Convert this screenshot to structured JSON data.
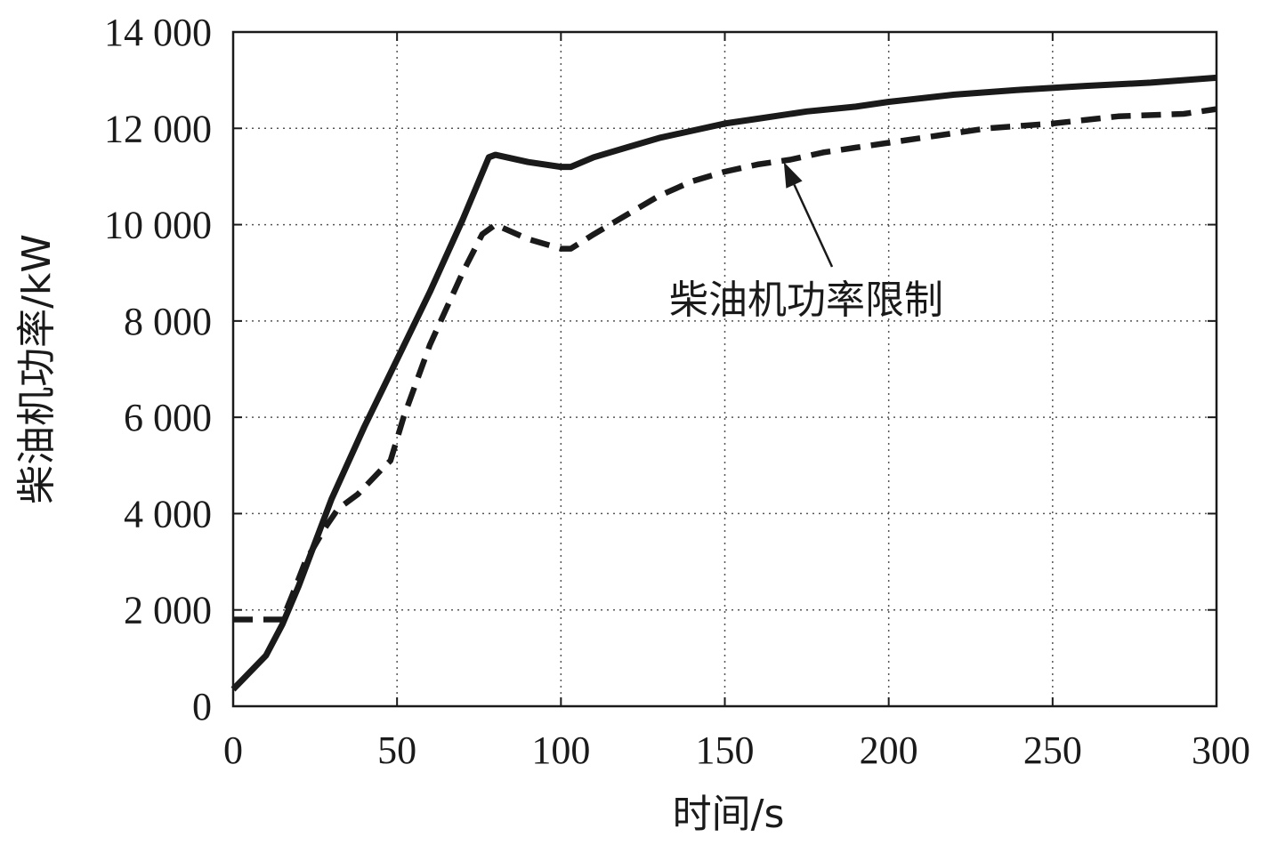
{
  "chart_data": {
    "type": "line",
    "title": "",
    "xlabel": "时间/s",
    "ylabel": "柴油机功率/kW",
    "xlim": [
      0,
      300
    ],
    "ylim": [
      0,
      14000
    ],
    "xticks": [
      0,
      50,
      100,
      150,
      200,
      250,
      300
    ],
    "xtick_labels": [
      "0",
      "50",
      "100",
      "150",
      "200",
      "250",
      "300"
    ],
    "yticks": [
      0,
      2000,
      4000,
      6000,
      8000,
      10000,
      12000,
      14000
    ],
    "ytick_labels": [
      "0",
      "2 000",
      "4 000",
      "6 000",
      "8 000",
      "10 000",
      "12 000",
      "14 000"
    ],
    "grid": true,
    "series": [
      {
        "style": "solid",
        "color": "#1a1a1a",
        "points": [
          [
            0,
            350
          ],
          [
            5,
            700
          ],
          [
            10,
            1050
          ],
          [
            15,
            1700
          ],
          [
            20,
            2500
          ],
          [
            25,
            3400
          ],
          [
            30,
            4300
          ],
          [
            40,
            5800
          ],
          [
            50,
            7200
          ],
          [
            60,
            8600
          ],
          [
            70,
            10100
          ],
          [
            78,
            11400
          ],
          [
            80,
            11450
          ],
          [
            90,
            11300
          ],
          [
            100,
            11200
          ],
          [
            103,
            11200
          ],
          [
            110,
            11400
          ],
          [
            120,
            11600
          ],
          [
            130,
            11800
          ],
          [
            140,
            11950
          ],
          [
            150,
            12100
          ],
          [
            160,
            12200
          ],
          [
            175,
            12350
          ],
          [
            190,
            12450
          ],
          [
            200,
            12550
          ],
          [
            220,
            12700
          ],
          [
            240,
            12800
          ],
          [
            260,
            12880
          ],
          [
            280,
            12950
          ],
          [
            300,
            13050
          ]
        ]
      },
      {
        "style": "dashed",
        "color": "#1a1a1a",
        "points": [
          [
            0,
            1800
          ],
          [
            15,
            1800
          ],
          [
            18,
            2300
          ],
          [
            22,
            3000
          ],
          [
            28,
            3700
          ],
          [
            32,
            4100
          ],
          [
            38,
            4400
          ],
          [
            45,
            4900
          ],
          [
            48,
            5100
          ],
          [
            52,
            6000
          ],
          [
            60,
            7500
          ],
          [
            70,
            9000
          ],
          [
            76,
            9800
          ],
          [
            80,
            10000
          ],
          [
            90,
            9700
          ],
          [
            100,
            9500
          ],
          [
            103,
            9500
          ],
          [
            110,
            9800
          ],
          [
            120,
            10200
          ],
          [
            130,
            10600
          ],
          [
            140,
            10900
          ],
          [
            150,
            11100
          ],
          [
            160,
            11250
          ],
          [
            170,
            11350
          ],
          [
            180,
            11500
          ],
          [
            190,
            11600
          ],
          [
            200,
            11700
          ],
          [
            215,
            11850
          ],
          [
            230,
            12000
          ],
          [
            250,
            12100
          ],
          [
            270,
            12250
          ],
          [
            290,
            12300
          ],
          [
            300,
            12400
          ]
        ]
      }
    ],
    "annotations": [
      {
        "text": "柴油机功率限制",
        "arrow_target": [
          168,
          11300
        ]
      }
    ]
  }
}
